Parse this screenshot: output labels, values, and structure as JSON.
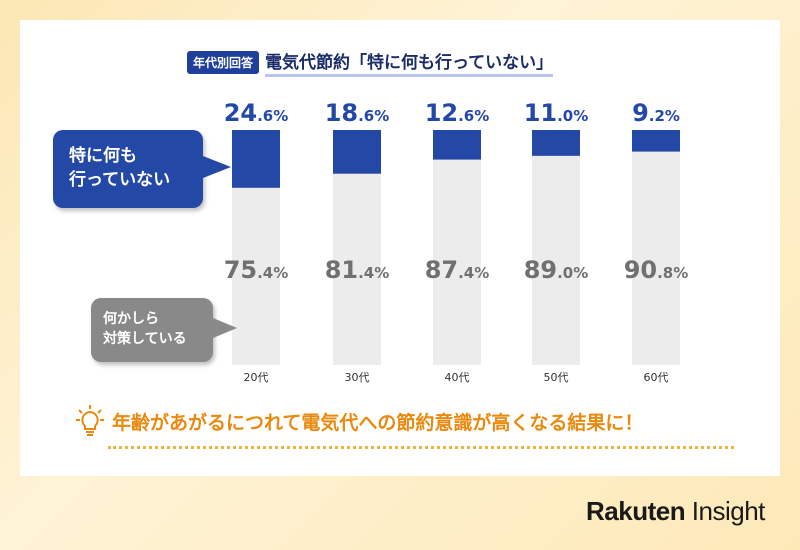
{
  "header": {
    "tag": "年代別回答",
    "title": "電気代節約「特に何も行っていない」"
  },
  "chart_data": {
    "type": "bar",
    "stacked": true,
    "ylim": [
      0,
      100
    ],
    "categories": [
      "20代",
      "30代",
      "40代",
      "50代",
      "60代"
    ],
    "series": [
      {
        "name": "特に何も行っていない",
        "values": [
          24.6,
          18.6,
          12.6,
          11.0,
          9.2
        ],
        "labels": [
          {
            "int": "24",
            "dec": ".6%"
          },
          {
            "int": "18",
            "dec": ".6%"
          },
          {
            "int": "12",
            "dec": ".6%"
          },
          {
            "int": "11",
            "dec": ".0%"
          },
          {
            "int": "9",
            "dec": ".2%"
          }
        ],
        "color": "#2448a5"
      },
      {
        "name": "何かしら対策している",
        "values": [
          75.4,
          81.4,
          87.4,
          89.0,
          90.8
        ],
        "labels": [
          {
            "int": "75",
            "dec": ".4%"
          },
          {
            "int": "81",
            "dec": ".4%"
          },
          {
            "int": "87",
            "dec": ".4%"
          },
          {
            "int": "89",
            "dec": ".0%"
          },
          {
            "int": "90",
            "dec": ".8%"
          }
        ],
        "color": "#ececec"
      }
    ]
  },
  "bubbles": {
    "blue_line1": "特に何も",
    "blue_line2": "行っていない",
    "gray_line1": "何かしら",
    "gray_line2": "対策している"
  },
  "conclusion": "年齢があがるにつれて電気代への節約意識が高くなる結果に！",
  "logo": {
    "bold": "Rakuten",
    "light": " Insight"
  },
  "colors": {
    "accent": "#2448a5",
    "orange": "#e98a0f"
  }
}
